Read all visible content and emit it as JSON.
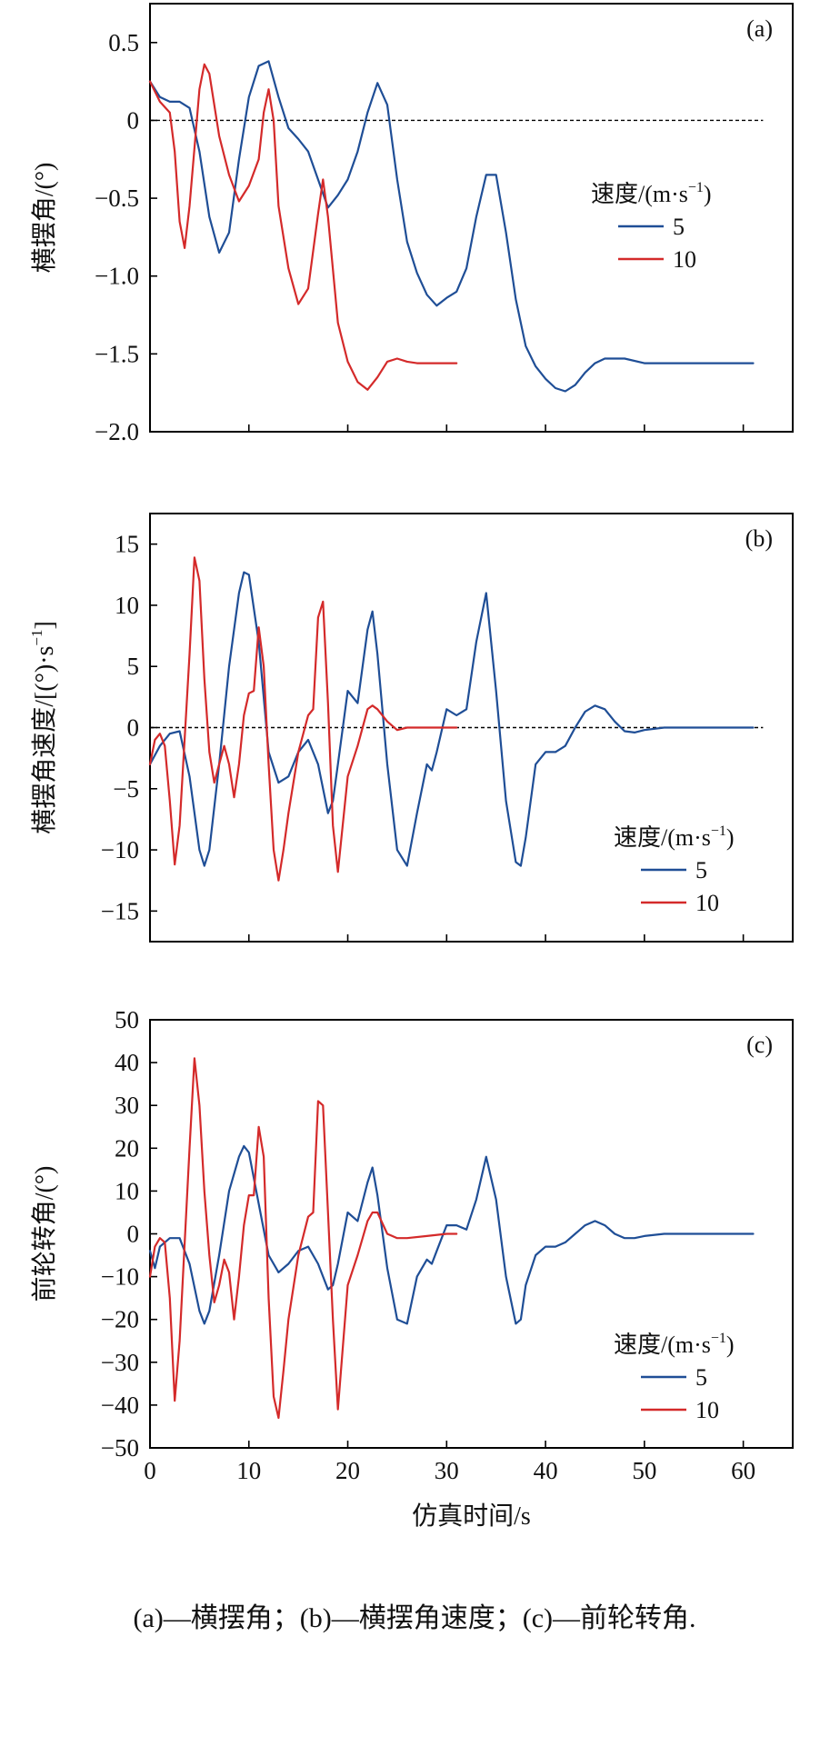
{
  "caption": "(a)—横摆角；(b)—横摆角速度；(c)—前轮转角.",
  "colors": {
    "speed5": "#1f4e96",
    "speed10": "#d42a2a"
  },
  "chart_data": [
    {
      "type": "line",
      "panel_label": "(a)",
      "ylabel": "横摆角/(°)",
      "xlabel": "",
      "xlim": [
        0,
        65
      ],
      "ylim": [
        -2.0,
        0.75
      ],
      "xticks": [
        0,
        10,
        20,
        30,
        40,
        50,
        60
      ],
      "yticks": [
        0.5,
        0,
        -0.5,
        -1.0,
        -1.5,
        -2.0
      ],
      "ytick_labels": [
        "0.5",
        "0",
        "−0.5",
        "−1.0",
        "−1.5",
        "−2.0"
      ],
      "zero_line": true,
      "legend": {
        "title": "速度/(m·s",
        "title_sup": "−1",
        "title_end": ")",
        "position": "right"
      },
      "series": [
        {
          "name": "5",
          "color": "#1f4e96",
          "x": [
            0,
            1,
            2,
            3,
            4,
            5,
            6,
            7,
            8,
            9,
            10,
            11,
            12,
            13,
            14,
            15,
            16,
            17,
            18,
            19,
            20,
            21,
            22,
            23,
            24,
            25,
            26,
            27,
            28,
            29,
            30,
            31,
            32,
            33,
            34,
            35,
            36,
            37,
            38,
            39,
            40,
            41,
            42,
            43,
            44,
            45,
            46,
            48,
            50,
            52,
            55,
            58,
            61
          ],
          "y": [
            0.25,
            0.15,
            0.12,
            0.12,
            0.08,
            -0.2,
            -0.62,
            -0.85,
            -0.72,
            -0.25,
            0.15,
            0.35,
            0.38,
            0.15,
            -0.05,
            -0.12,
            -0.2,
            -0.38,
            -0.56,
            -0.48,
            -0.38,
            -0.2,
            0.05,
            0.24,
            0.1,
            -0.38,
            -0.78,
            -0.98,
            -1.12,
            -1.19,
            -1.14,
            -1.1,
            -0.95,
            -0.62,
            -0.35,
            -0.35,
            -0.72,
            -1.15,
            -1.45,
            -1.58,
            -1.66,
            -1.72,
            -1.74,
            -1.7,
            -1.62,
            -1.56,
            -1.53,
            -1.53,
            -1.56,
            -1.56,
            -1.56,
            -1.56,
            -1.56
          ]
        },
        {
          "name": "10",
          "color": "#d42a2a",
          "x": [
            0,
            1,
            2,
            2.5,
            3,
            3.5,
            4,
            5,
            5.5,
            6,
            7,
            8,
            9,
            10,
            11,
            11.5,
            12,
            12.5,
            13,
            14,
            15,
            16,
            17,
            17.5,
            18,
            19,
            20,
            21,
            22,
            23,
            24,
            25,
            26,
            27,
            28,
            29,
            30,
            31
          ],
          "y": [
            0.25,
            0.12,
            0.05,
            -0.2,
            -0.65,
            -0.82,
            -0.55,
            0.2,
            0.36,
            0.3,
            -0.1,
            -0.35,
            -0.52,
            -0.42,
            -0.25,
            0.05,
            0.2,
            0.0,
            -0.55,
            -0.95,
            -1.18,
            -1.08,
            -0.6,
            -0.38,
            -0.62,
            -1.3,
            -1.55,
            -1.68,
            -1.73,
            -1.65,
            -1.55,
            -1.53,
            -1.55,
            -1.56,
            -1.56,
            -1.56,
            -1.56,
            -1.56
          ]
        }
      ]
    },
    {
      "type": "line",
      "panel_label": "(b)",
      "ylabel": "横摆角速度/[(°)·s",
      "ylabel_sup": "−1",
      "ylabel_end": "]",
      "xlabel": "",
      "xlim": [
        0,
        65
      ],
      "ylim": [
        -17.5,
        17.5
      ],
      "xticks": [
        0,
        10,
        20,
        30,
        40,
        50,
        60
      ],
      "yticks": [
        15,
        10,
        5,
        0,
        -5,
        -10,
        -15
      ],
      "ytick_labels": [
        "15",
        "10",
        "5",
        "0",
        "−5",
        "−10",
        "−15"
      ],
      "zero_line": true,
      "legend": {
        "title": "速度/(m·s",
        "title_sup": "−1",
        "title_end": ")",
        "position": "bottom-right"
      },
      "series": [
        {
          "name": "5",
          "color": "#1f4e96",
          "x": [
            0,
            1,
            2,
            3,
            4,
            5,
            5.5,
            6,
            7,
            8,
            9,
            9.5,
            10,
            11,
            12,
            13,
            14,
            15,
            16,
            17,
            18,
            18.5,
            19,
            20,
            21,
            22,
            22.5,
            23,
            24,
            25,
            26,
            27,
            28,
            28.5,
            29,
            30,
            31,
            32,
            33,
            34,
            35,
            36,
            37,
            37.5,
            38,
            39,
            40,
            41,
            42,
            43,
            44,
            45,
            46,
            47,
            48,
            49,
            50,
            52,
            55,
            58,
            61
          ],
          "y": [
            -3,
            -1.5,
            -0.5,
            -0.3,
            -4,
            -10,
            -11.3,
            -10,
            -3,
            5,
            11,
            12.7,
            12.5,
            7,
            -2,
            -4.5,
            -4,
            -2,
            -1,
            -3,
            -7,
            -6,
            -3,
            3,
            2,
            8,
            9.5,
            6,
            -3,
            -10,
            -11.3,
            -7,
            -3,
            -3.5,
            -2,
            1.5,
            1,
            1.5,
            7,
            11,
            3,
            -6,
            -11,
            -11.3,
            -9,
            -3,
            -2,
            -2,
            -1.5,
            0,
            1.3,
            1.8,
            1.5,
            0.5,
            -0.3,
            -0.4,
            -0.2,
            0,
            0,
            0,
            0
          ]
        },
        {
          "name": "10",
          "color": "#d42a2a",
          "x": [
            0,
            0.5,
            1,
            1.5,
            2,
            2.5,
            3,
            4,
            4.5,
            5,
            5.5,
            6,
            6.5,
            7,
            7.5,
            8,
            8.5,
            9,
            9.5,
            10,
            10.5,
            11,
            11.5,
            12,
            12.5,
            13,
            13.5,
            14,
            15,
            16,
            16.5,
            17,
            17.5,
            18,
            18.5,
            19,
            20,
            21,
            22,
            22.5,
            23,
            24,
            25,
            26,
            28,
            30,
            31
          ],
          "y": [
            -3,
            -1,
            -0.5,
            -1.5,
            -6,
            -11.2,
            -8,
            6,
            13.9,
            12,
            4,
            -2,
            -4.5,
            -3,
            -1.5,
            -3,
            -5.7,
            -3,
            1,
            2.8,
            3,
            8.2,
            5,
            -3,
            -10,
            -12.5,
            -10,
            -7,
            -2,
            1,
            1.5,
            9,
            10.3,
            2,
            -8,
            -11.8,
            -4,
            -1.5,
            1.5,
            1.8,
            1.5,
            0.5,
            -0.2,
            0,
            0,
            0,
            0
          ]
        }
      ]
    },
    {
      "type": "line",
      "panel_label": "(c)",
      "ylabel": "前轮转角/(°)",
      "xlabel": "仿真时间/s",
      "xlim": [
        0,
        65
      ],
      "ylim": [
        -50,
        50
      ],
      "xticks": [
        0,
        10,
        20,
        30,
        40,
        50,
        60
      ],
      "xtick_labels": [
        "0",
        "10",
        "20",
        "30",
        "40",
        "50",
        "60"
      ],
      "yticks": [
        50,
        40,
        30,
        20,
        10,
        0,
        -10,
        -20,
        -30,
        -40,
        -50
      ],
      "ytick_labels": [
        "50",
        "40",
        "30",
        "20",
        "10",
        "0",
        "−10",
        "−20",
        "−30",
        "−40",
        "−50"
      ],
      "zero_line": false,
      "legend": {
        "title": "速度/(m·s",
        "title_sup": "−1",
        "title_end": ")",
        "position": "bottom-right"
      },
      "series": [
        {
          "name": "5",
          "color": "#1f4e96",
          "x": [
            0,
            0.5,
            1,
            2,
            3,
            4,
            5,
            5.5,
            6,
            7,
            8,
            9,
            9.5,
            10,
            11,
            12,
            13,
            14,
            15,
            16,
            17,
            18,
            18.5,
            19,
            20,
            21,
            22,
            22.5,
            23,
            24,
            25,
            26,
            27,
            28,
            28.5,
            29,
            30,
            31,
            32,
            33,
            34,
            35,
            36,
            37,
            37.5,
            38,
            39,
            40,
            41,
            42,
            43,
            44,
            45,
            46,
            47,
            48,
            49,
            50,
            52,
            55,
            58,
            61
          ],
          "y": [
            -4,
            -8,
            -3,
            -1,
            -1,
            -7,
            -18,
            -21,
            -18,
            -5,
            10,
            18,
            20.5,
            19,
            7,
            -5,
            -9,
            -7,
            -4,
            -3,
            -7,
            -13,
            -12,
            -7,
            5,
            3,
            12,
            15.5,
            9,
            -8,
            -20,
            -21,
            -10,
            -6,
            -7,
            -4,
            2,
            2,
            1,
            8,
            18,
            8,
            -10,
            -21,
            -20,
            -12,
            -5,
            -3,
            -3,
            -2,
            0,
            2,
            3,
            2,
            0,
            -1,
            -1,
            -0.5,
            0,
            0,
            0,
            0
          ]
        },
        {
          "name": "10",
          "color": "#d42a2a",
          "x": [
            0,
            0.5,
            1,
            1.5,
            2,
            2.5,
            3,
            4,
            4.5,
            5,
            5.5,
            6,
            6.5,
            7,
            7.5,
            8,
            8.5,
            9,
            9.5,
            10,
            10.5,
            11,
            11.5,
            12,
            12.5,
            13,
            13.5,
            14,
            15,
            16,
            16.5,
            17,
            17.5,
            18,
            18.5,
            19,
            20,
            21,
            22,
            22.5,
            23,
            24,
            25,
            26,
            28,
            30,
            31
          ],
          "y": [
            -10,
            -3,
            -1,
            -2,
            -15,
            -39,
            -25,
            20,
            41,
            30,
            10,
            -5,
            -16,
            -12,
            -6,
            -9,
            -20,
            -10,
            2,
            9,
            9,
            25,
            18,
            -15,
            -38,
            -43,
            -32,
            -20,
            -5,
            4,
            5,
            31,
            30,
            5,
            -20,
            -41,
            -12,
            -5,
            3,
            5,
            5,
            0,
            -1,
            -1,
            -0.5,
            0,
            0
          ]
        }
      ]
    }
  ]
}
